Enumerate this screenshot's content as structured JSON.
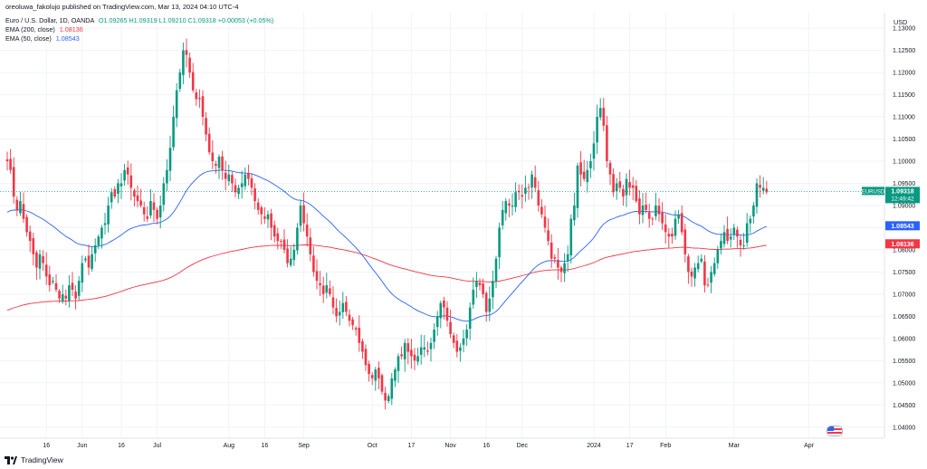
{
  "header": {
    "publisher": "oreoluwa_fakolujo published on TradingView.com, Mar 13, 2024 04:10 UTC-4",
    "currency": "USD"
  },
  "legend": {
    "symbol_line": "Euro / U.S. Dollar, 1D, OANDA",
    "ohlc": "O1.09265 H1.09319 L1.09210 C1.09318 +0.00053 (+0.05%)",
    "ema200_label": "EMA (200, close)",
    "ema200_value": "1.08136",
    "ema50_label": "EMA (50, close)",
    "ema50_value": "1.08543"
  },
  "footer": {
    "brand": "TradingView"
  },
  "colors": {
    "up": "#089981",
    "down": "#f23645",
    "ema50": "#2962ff",
    "ema200": "#f23645",
    "grid": "#f0f3fa"
  },
  "chart_data": {
    "type": "candlestick",
    "title": "Euro / U.S. Dollar, 1D, OANDA",
    "ylim": [
      1.0375,
      1.1335
    ],
    "y_ticks": [
      "1.04000",
      "1.04500",
      "1.05000",
      "1.05500",
      "1.06000",
      "1.06500",
      "1.07000",
      "1.07500",
      "1.08000",
      "1.08500",
      "1.09000",
      "1.09500",
      "1.10000",
      "1.10500",
      "1.11000",
      "1.11500",
      "1.12000",
      "1.12500",
      "1.13000"
    ],
    "x_ticks": [
      {
        "label": "16",
        "d": 12
      },
      {
        "label": "Jun",
        "d": 23
      },
      {
        "label": "16",
        "d": 35
      },
      {
        "label": "Jul",
        "d": 46
      },
      {
        "label": "Aug",
        "d": 68
      },
      {
        "label": "16",
        "d": 79
      },
      {
        "label": "Sep",
        "d": 91
      },
      {
        "label": "Oct",
        "d": 112
      },
      {
        "label": "17",
        "d": 124
      },
      {
        "label": "Nov",
        "d": 136
      },
      {
        "label": "16",
        "d": 147
      },
      {
        "label": "Dec",
        "d": 158
      },
      {
        "label": "2024",
        "d": 180
      },
      {
        "label": "17",
        "d": 191
      },
      {
        "label": "Feb",
        "d": 202
      },
      {
        "label": "Mar",
        "d": 223
      },
      {
        "label": "Apr",
        "d": 246
      }
    ],
    "closes": [
      1.1,
      1.098,
      1.092,
      1.089,
      1.091,
      1.087,
      1.084,
      1.082,
      1.079,
      1.076,
      1.079,
      1.077,
      1.074,
      1.072,
      1.073,
      1.071,
      1.069,
      1.07,
      1.069,
      1.072,
      1.071,
      1.069,
      1.073,
      1.077,
      1.078,
      1.076,
      1.079,
      1.081,
      1.083,
      1.085,
      1.086,
      1.09,
      1.093,
      1.092,
      1.095,
      1.095,
      1.098,
      1.097,
      1.094,
      1.092,
      1.091,
      1.09,
      1.088,
      1.087,
      1.091,
      1.089,
      1.087,
      1.09,
      1.095,
      1.098,
      1.103,
      1.11,
      1.116,
      1.12,
      1.125,
      1.124,
      1.12,
      1.116,
      1.114,
      1.114,
      1.11,
      1.106,
      1.102,
      1.1,
      1.099,
      1.101,
      1.098,
      1.096,
      1.097,
      1.095,
      1.093,
      1.094,
      1.095,
      1.097,
      1.096,
      1.094,
      1.091,
      1.089,
      1.088,
      1.087,
      1.088,
      1.085,
      1.083,
      1.082,
      1.082,
      1.08,
      1.077,
      1.078,
      1.08,
      1.085,
      1.09,
      1.086,
      1.083,
      1.079,
      1.075,
      1.073,
      1.072,
      1.07,
      1.072,
      1.07,
      1.067,
      1.065,
      1.066,
      1.068,
      1.066,
      1.064,
      1.063,
      1.062,
      1.059,
      1.057,
      1.054,
      1.052,
      1.051,
      1.053,
      1.051,
      1.048,
      1.046,
      1.047,
      1.051,
      1.053,
      1.056,
      1.056,
      1.059,
      1.057,
      1.056,
      1.055,
      1.056,
      1.058,
      1.058,
      1.057,
      1.059,
      1.062,
      1.065,
      1.068,
      1.067,
      1.064,
      1.061,
      1.059,
      1.057,
      1.058,
      1.06,
      1.062,
      1.067,
      1.071,
      1.073,
      1.072,
      1.07,
      1.066,
      1.069,
      1.073,
      1.078,
      1.085,
      1.089,
      1.091,
      1.09,
      1.09,
      1.093,
      1.093,
      1.092,
      1.094,
      1.094,
      1.097,
      1.094,
      1.09,
      1.088,
      1.085,
      1.082,
      1.078,
      1.078,
      1.076,
      1.075,
      1.077,
      1.079,
      1.087,
      1.09,
      1.099,
      1.097,
      1.096,
      1.098,
      1.1,
      1.104,
      1.11,
      1.112,
      1.108,
      1.1,
      1.097,
      1.093,
      1.095,
      1.094,
      1.092,
      1.096,
      1.094,
      1.094,
      1.091,
      1.088,
      1.09,
      1.089,
      1.087,
      1.087,
      1.09,
      1.088,
      1.086,
      1.084,
      1.083,
      1.083,
      1.087,
      1.088,
      1.084,
      1.079,
      1.075,
      1.074,
      1.076,
      1.077,
      1.078,
      1.072,
      1.072,
      1.075,
      1.077,
      1.08,
      1.082,
      1.084,
      1.082,
      1.083,
      1.085,
      1.083,
      1.081,
      1.081,
      1.086,
      1.087,
      1.09,
      1.095,
      1.094,
      1.094,
      1.093
    ],
    "last_price": "1.09318",
    "last_label": "EURUSD",
    "countdown": "12:49:42",
    "series": [
      {
        "name": "EMA (200, close)",
        "last": "1.08136"
      },
      {
        "name": "EMA (50, close)",
        "last": "1.08543"
      }
    ]
  }
}
